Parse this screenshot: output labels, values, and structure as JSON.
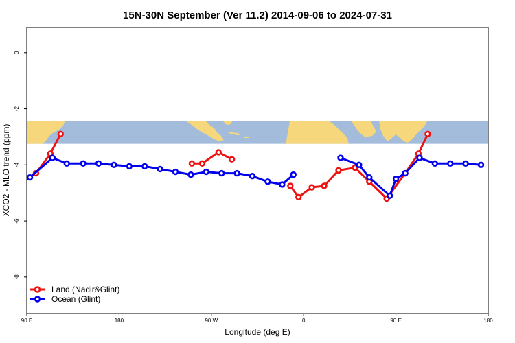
{
  "chart_data": {
    "type": "line",
    "title": "15N-30N September (Ver 11.2)   2014-09-06 to 2024-07-31",
    "xlabel": "Longitude (deg E)",
    "ylabel": "XCO2 - MLO trend (ppm)",
    "xlim": [
      90,
      540
    ],
    "ylim": [
      -9.3,
      0.9
    ],
    "x_ticks": [
      {
        "value": 90,
        "label": "90 E"
      },
      {
        "value": 180,
        "label": "180"
      },
      {
        "value": 270,
        "label": "90 W"
      },
      {
        "value": 360,
        "label": "0"
      },
      {
        "value": 450,
        "label": "90 E"
      },
      {
        "value": 540,
        "label": "180"
      }
    ],
    "y_ticks": [
      {
        "value": 0,
        "label": "0"
      },
      {
        "value": -2,
        "label": "-2"
      },
      {
        "value": -4,
        "label": "-4"
      },
      {
        "value": -6,
        "label": "-6"
      },
      {
        "value": -8,
        "label": "-8"
      }
    ],
    "map_band": {
      "y_top": -2.45,
      "y_bottom": -3.25,
      "land_color": "#F7D77B",
      "ocean_color": "#A4BCDC"
    },
    "legend_position": "bottom-left",
    "series": [
      {
        "name": "Land (Nadir&Glint)",
        "color": "#EE1111",
        "segments": [
          [
            [
              99,
              -4.3
            ],
            [
              113,
              -3.6
            ],
            [
              123,
              -2.9
            ]
          ],
          [
            [
              251,
              -3.95
            ],
            [
              261,
              -3.95
            ],
            [
              277,
              -3.55
            ],
            [
              290,
              -3.8
            ]
          ],
          [
            [
              347,
              -4.75
            ],
            [
              355,
              -5.15
            ],
            [
              368,
              -4.8
            ],
            [
              380,
              -4.75
            ],
            [
              394,
              -4.2
            ],
            [
              410,
              -4.1
            ],
            [
              424,
              -4.6
            ],
            [
              441,
              -5.2
            ],
            [
              459,
              -4.3
            ],
            [
              472,
              -3.6
            ],
            [
              481,
              -2.9
            ]
          ]
        ]
      },
      {
        "name": "Ocean (Glint)",
        "color": "#0000EE",
        "segments": [
          [
            [
              93,
              -4.45
            ],
            [
              115,
              -3.75
            ],
            [
              129,
              -3.95
            ],
            [
              145,
              -3.95
            ],
            [
              160,
              -3.95
            ],
            [
              175,
              -4.0
            ],
            [
              190,
              -4.05
            ],
            [
              205,
              -4.05
            ],
            [
              220,
              -4.15
            ],
            [
              235,
              -4.25
            ],
            [
              250,
              -4.35
            ],
            [
              265,
              -4.25
            ],
            [
              280,
              -4.3
            ],
            [
              295,
              -4.3
            ],
            [
              310,
              -4.4
            ],
            [
              325,
              -4.6
            ],
            [
              339,
              -4.7
            ],
            [
              350,
              -4.35
            ]
          ],
          [
            [
              396,
              -3.75
            ],
            [
              414,
              -4.0
            ],
            [
              424,
              -4.45
            ],
            [
              444,
              -5.1
            ],
            [
              450,
              -4.5
            ],
            [
              459,
              -4.3
            ],
            [
              473,
              -3.75
            ],
            [
              488,
              -3.95
            ],
            [
              503,
              -3.95
            ],
            [
              518,
              -3.95
            ],
            [
              533,
              -4.0
            ]
          ]
        ]
      }
    ]
  }
}
